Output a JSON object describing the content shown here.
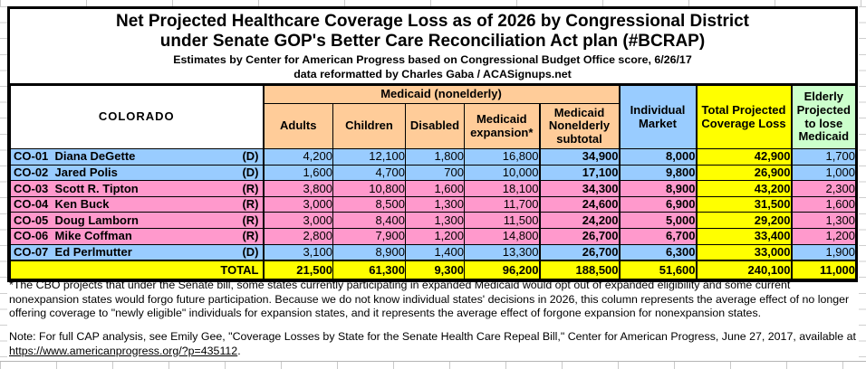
{
  "title": {
    "line1": "Net Projected Healthcare Coverage Loss as of 2026 by Congressional District",
    "line2": "under Senate GOP's Better Care Reconciliation Act plan (#BCRAP)",
    "line3": "Estimates by Center for American Progress based on Congressional Budget Office score, 6/26/17",
    "line4": "data reformatted by Charles Gaba / ACASignups.net"
  },
  "table": {
    "state_label": "COLORADO",
    "group_header": "Medicaid (nonelderly)",
    "columns": {
      "adults": "Adults",
      "children": "Children",
      "disabled": "Disabled",
      "expansion": "Medicaid expansion*",
      "subtotal": "Medicaid Nonelderly subtotal",
      "individual_market": "Individual Market",
      "total": "Total Projected Coverage Loss",
      "elderly": "Elderly Projected to lose Medicaid"
    }
  },
  "chart_data": {
    "type": "table",
    "title": "Net Projected Healthcare Coverage Loss as of 2026 by Congressional District (Colorado)",
    "columns": [
      "District",
      "Adults",
      "Children",
      "Disabled",
      "Medicaid expansion*",
      "Medicaid Nonelderly subtotal",
      "Individual Market",
      "Total Projected Coverage Loss",
      "Elderly Projected to lose Medicaid"
    ],
    "rows": [
      {
        "district": "CO-01",
        "name": "Diana DeGette",
        "party": "(D)",
        "adults": "4,200",
        "children": "12,100",
        "disabled": "1,800",
        "expansion": "16,800",
        "subtotal": "34,900",
        "individual_market": "8,000",
        "total": "42,900",
        "elderly": "1,700"
      },
      {
        "district": "CO-02",
        "name": "Jared Polis",
        "party": "(D)",
        "adults": "1,600",
        "children": "4,700",
        "disabled": "700",
        "expansion": "10,000",
        "subtotal": "17,100",
        "individual_market": "9,800",
        "total": "26,900",
        "elderly": "1,000"
      },
      {
        "district": "CO-03",
        "name": "Scott R. Tipton",
        "party": "(R)",
        "adults": "3,800",
        "children": "10,800",
        "disabled": "1,600",
        "expansion": "18,100",
        "subtotal": "34,300",
        "individual_market": "8,900",
        "total": "43,200",
        "elderly": "2,300"
      },
      {
        "district": "CO-04",
        "name": "Ken Buck",
        "party": "(R)",
        "adults": "3,000",
        "children": "8,500",
        "disabled": "1,300",
        "expansion": "11,700",
        "subtotal": "24,600",
        "individual_market": "6,900",
        "total": "31,500",
        "elderly": "1,600"
      },
      {
        "district": "CO-05",
        "name": "Doug Lamborn",
        "party": "(R)",
        "adults": "3,000",
        "children": "8,400",
        "disabled": "1,300",
        "expansion": "11,500",
        "subtotal": "24,200",
        "individual_market": "5,000",
        "total": "29,200",
        "elderly": "1,300"
      },
      {
        "district": "CO-06",
        "name": "Mike Coffman",
        "party": "(R)",
        "adults": "2,800",
        "children": "7,900",
        "disabled": "1,200",
        "expansion": "14,800",
        "subtotal": "26,700",
        "individual_market": "6,700",
        "total": "33,400",
        "elderly": "1,200"
      },
      {
        "district": "CO-07",
        "name": "Ed Perlmutter",
        "party": "(D)",
        "adults": "3,100",
        "children": "8,900",
        "disabled": "1,400",
        "expansion": "13,300",
        "subtotal": "26,700",
        "individual_market": "6,300",
        "total": "33,000",
        "elderly": "1,900"
      }
    ],
    "totals": {
      "label": "TOTAL",
      "adults": "21,500",
      "children": "61,300",
      "disabled": "9,300",
      "expansion": "96,200",
      "subtotal": "188,500",
      "individual_market": "51,600",
      "total": "240,100",
      "elderly": "11,000"
    }
  },
  "footnote": "*The CBO projects that under the Senate bill, some states currently participating in expanded Medicaid would opt out of expanded eligibility and some current nonexpansion states would forgo future participation. Because we do not know individual states' decisions in 2026, this column represents the average effect of no longer offering coverage to \"newly eligible\" individuals for expansion states, and it represents the average effect of forgone expansion for nonexpansion states.",
  "note": {
    "prefix": "Note: For full CAP analysis, see Emily Gee, \"Coverage Losses by State for the Senate Health Care Repeal Bill,\" Center for American Progress, June 27, 2017, available at ",
    "url": "https://www.americanprogress.org/?p=435112",
    "suffix": "."
  },
  "colors": {
    "peach": "#FFCC99",
    "blue": "#99CCFF",
    "pink": "#FF99CC",
    "yellow": "#FFFF00",
    "green": "#CCFFCC"
  }
}
